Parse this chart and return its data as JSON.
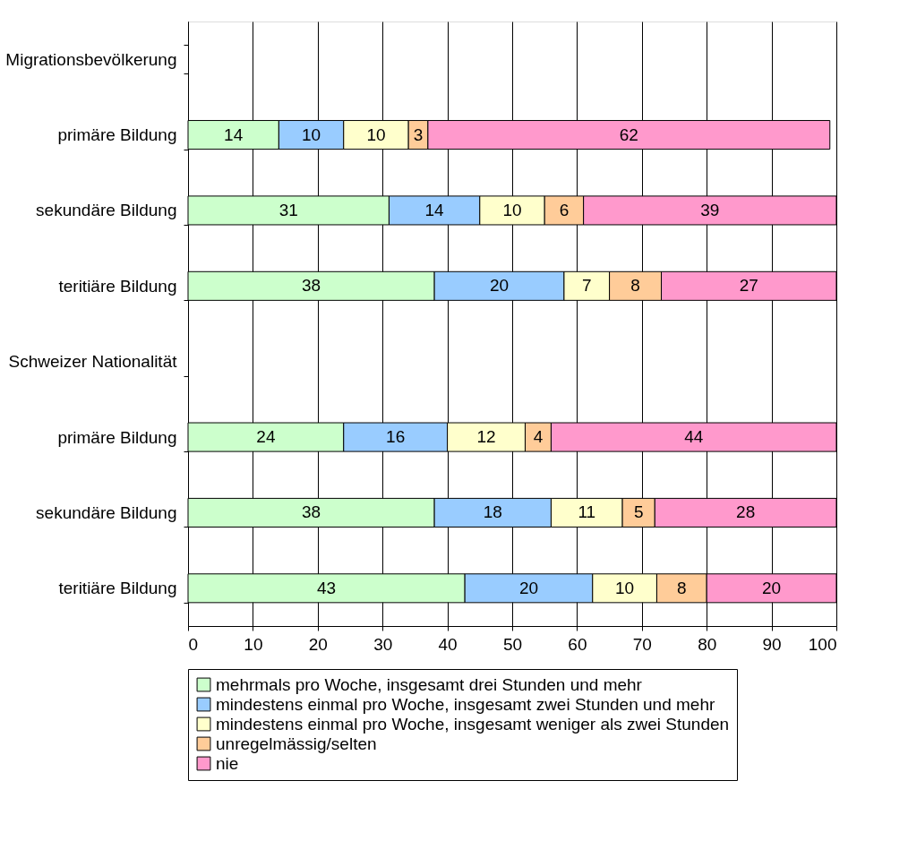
{
  "chart_data": {
    "type": "bar",
    "orientation": "horizontal",
    "stacked": true,
    "categories": [
      "Migrationsbevölkerung",
      "primäre Bildung",
      "sekundäre Bildung",
      "teritiäre Bildung",
      "Schweizer Nationalität",
      "primäre Bildung",
      "sekundäre Bildung",
      "teritiäre Bildung"
    ],
    "series": [
      {
        "name": "mehrmals pro Woche, insgesamt drei Stunden und mehr",
        "color": "#ccffcc",
        "values": [
          null,
          14,
          31,
          38,
          null,
          24,
          38,
          42.7
        ],
        "value_labels": [
          null,
          "14",
          "31",
          "38",
          null,
          "24",
          "38",
          "43"
        ]
      },
      {
        "name": "mindestens einmal pro Woche, insgesamt zwei Stunden und mehr",
        "color": "#99ccff",
        "values": [
          null,
          10,
          14,
          20,
          null,
          16,
          18,
          19.7
        ],
        "value_labels": [
          null,
          "10",
          "14",
          "20",
          null,
          "16",
          "18",
          "20"
        ]
      },
      {
        "name": "mindestens einmal pro Woche, insgesamt weniger als zwei Stunden",
        "color": "#ffffcc",
        "values": [
          null,
          10,
          10,
          7,
          null,
          12,
          11,
          9.9
        ],
        "value_labels": [
          null,
          "10",
          "10",
          "7",
          null,
          "12",
          "11",
          "10"
        ]
      },
      {
        "name": "unregelmässig/selten",
        "color": "#ffcc99",
        "values": [
          null,
          3,
          6,
          8,
          null,
          4,
          5,
          7.7
        ],
        "value_labels": [
          null,
          "3",
          "6",
          "8",
          null,
          "4",
          "5",
          "8"
        ]
      },
      {
        "name": "nie",
        "color": "#ff99cc",
        "values": [
          null,
          62,
          39,
          27,
          null,
          44,
          28,
          20
        ],
        "value_labels": [
          null,
          "62",
          "39",
          "27",
          null,
          "44",
          "28",
          "20"
        ]
      }
    ],
    "xlim": [
      0,
      100
    ],
    "xticks": [
      0,
      10,
      20,
      30,
      40,
      50,
      60,
      70,
      80,
      90,
      100
    ],
    "grid": "x",
    "legend": "bottom"
  }
}
